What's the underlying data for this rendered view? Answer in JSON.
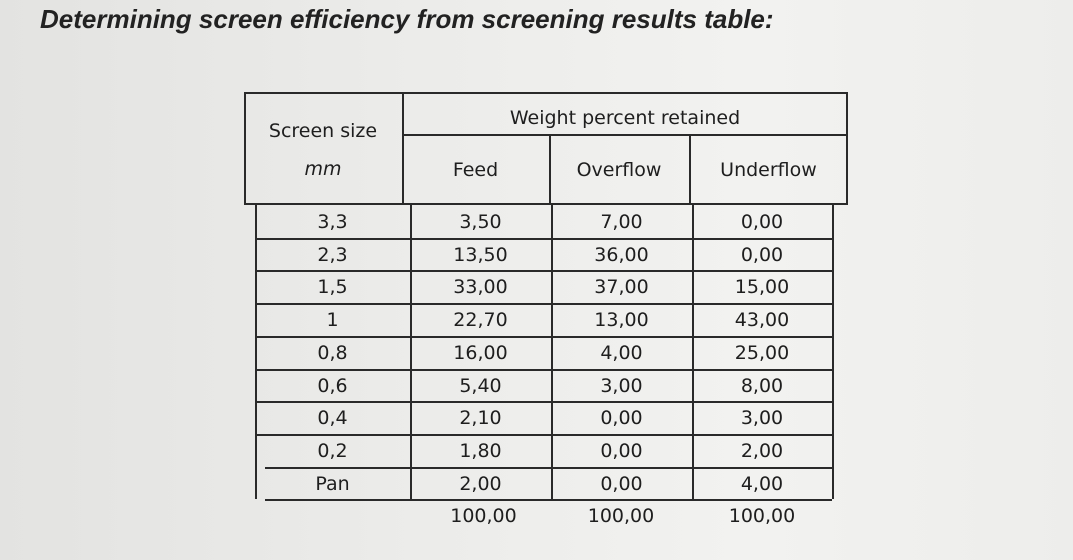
{
  "heading": "Determining screen efficiency from screening results table:",
  "table": {
    "col_size_header": "Screen size",
    "col_size_unit": "mm",
    "group_header": "Weight percent retained",
    "col_headers": [
      "Feed",
      "Overflow",
      "Underflow"
    ],
    "rows": [
      {
        "size": "3,3",
        "feed": "3,50",
        "overflow": "7,00",
        "underflow": "0,00"
      },
      {
        "size": "2,3",
        "feed": "13,50",
        "overflow": "36,00",
        "underflow": "0,00"
      },
      {
        "size": "1,5",
        "feed": "33,00",
        "overflow": "37,00",
        "underflow": "15,00"
      },
      {
        "size": "1",
        "feed": "22,70",
        "overflow": "13,00",
        "underflow": "43,00"
      },
      {
        "size": "0,8",
        "feed": "16,00",
        "overflow": "4,00",
        "underflow": "25,00"
      },
      {
        "size": "0,6",
        "feed": "5,40",
        "overflow": "3,00",
        "underflow": "8,00"
      },
      {
        "size": "0,4",
        "feed": "2,10",
        "overflow": "0,00",
        "underflow": "3,00"
      },
      {
        "size": "0,2",
        "feed": "1,80",
        "overflow": "0,00",
        "underflow": "2,00"
      },
      {
        "size": "Pan",
        "feed": "2,00",
        "overflow": "0,00",
        "underflow": "4,00"
      }
    ],
    "totals": {
      "feed": "100,00",
      "overflow": "100,00",
      "underflow": "100,00"
    }
  }
}
